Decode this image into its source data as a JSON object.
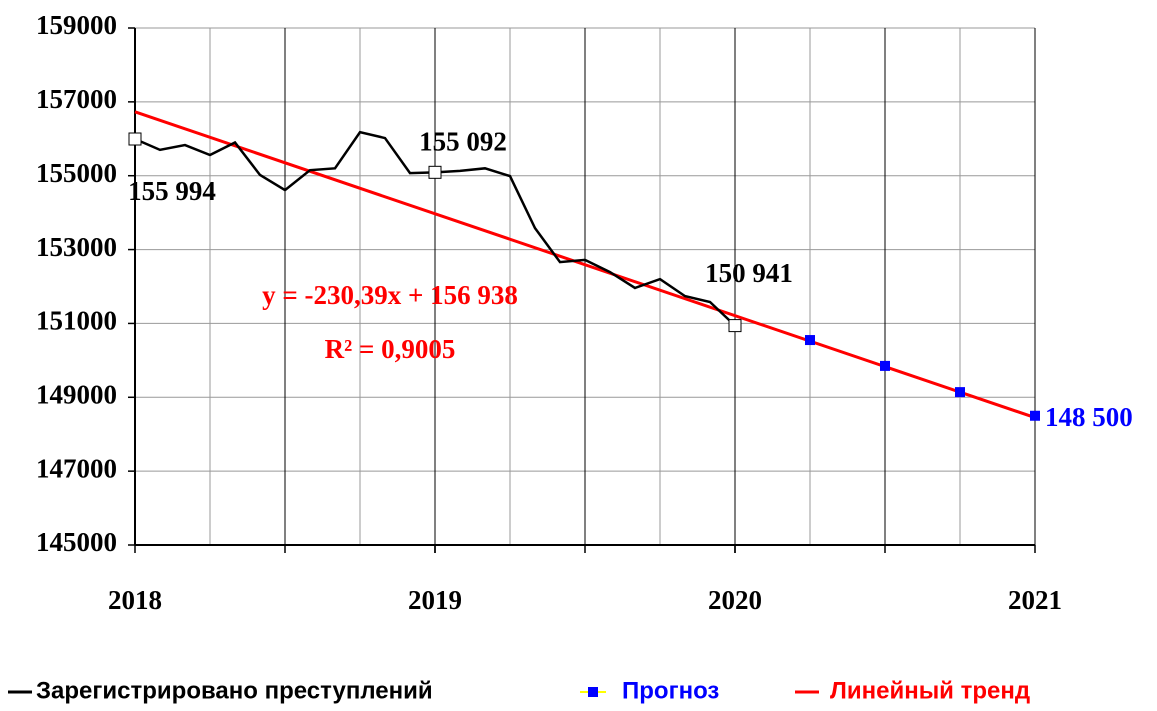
{
  "chart_data": {
    "type": "line",
    "xlim": [
      0,
      36
    ],
    "xticks": [
      {
        "value": 0,
        "label": "2018"
      },
      {
        "value": 12,
        "label": "2019"
      },
      {
        "value": 24,
        "label": "2020"
      },
      {
        "value": 36,
        "label": "2021"
      }
    ],
    "xgrid": [
      3,
      6,
      9,
      12,
      15,
      18,
      21,
      24,
      27,
      30,
      33
    ],
    "ylim": [
      145000,
      159000
    ],
    "yticks": [
      145000,
      147000,
      149000,
      151000,
      153000,
      155000,
      157000,
      159000
    ],
    "grid": true,
    "legend": "bottom",
    "series": [
      {
        "name": "Зарегистрировано преступлений",
        "color": "#000000",
        "x": [
          0,
          1,
          2,
          3,
          4,
          5,
          6,
          7,
          8,
          9,
          10,
          11,
          12,
          13,
          14,
          15,
          16,
          17,
          18,
          19,
          20,
          21,
          22,
          23,
          24
        ],
        "values": [
          155994,
          155700,
          155830,
          155560,
          155900,
          155020,
          154610,
          155150,
          155200,
          156180,
          156020,
          155070,
          155092,
          155130,
          155200,
          154990,
          153580,
          152660,
          152720,
          152390,
          151960,
          152200,
          151740,
          151580,
          150941
        ],
        "value_labels": [
          "155 994",
          null,
          null,
          null,
          null,
          null,
          null,
          null,
          null,
          null,
          null,
          null,
          "155 092",
          null,
          null,
          null,
          null,
          null,
          null,
          null,
          null,
          null,
          null,
          null,
          "150 941"
        ]
      },
      {
        "name": "Прогноз",
        "color": "#0000ff",
        "x": [
          27,
          30,
          33,
          36
        ],
        "values": [
          150550,
          149850,
          149140,
          148500
        ],
        "value_labels": [
          null,
          null,
          null,
          "148 500"
        ]
      },
      {
        "name": "Линейный тренд",
        "color": "#ff0000",
        "x": [
          0,
          36
        ],
        "values": [
          156730,
          148450
        ]
      }
    ],
    "annotations": [
      "y = -230,39x + 156 938",
      "R² = 0,9005"
    ]
  }
}
